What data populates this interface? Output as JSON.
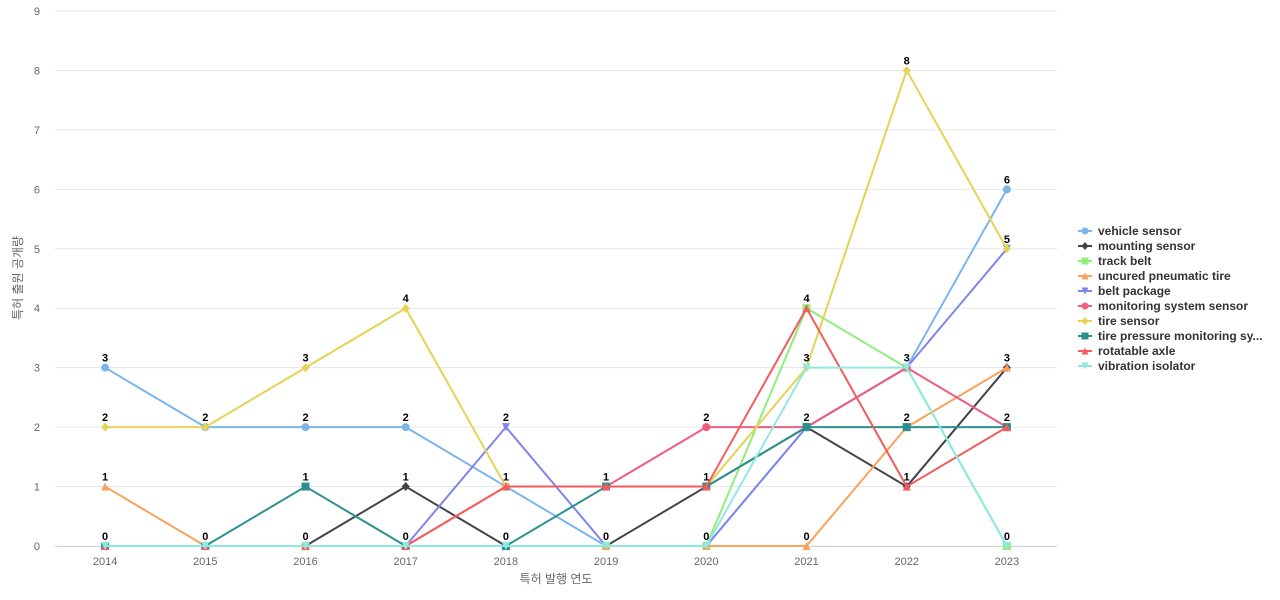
{
  "chart_data": {
    "type": "line",
    "xlabel": "특허 발행 연도",
    "ylabel": "특허 출원 공개량",
    "ylim": [
      0,
      9
    ],
    "yticks": [
      0,
      1,
      2,
      3,
      4,
      5,
      6,
      7,
      8,
      9
    ],
    "grid": true,
    "legend_position": "right",
    "categories": [
      "2014",
      "2015",
      "2016",
      "2017",
      "2018",
      "2019",
      "2020",
      "2021",
      "2022",
      "2023"
    ],
    "series": [
      {
        "name": "vehicle sensor",
        "color": "#7cb5ec",
        "marker": "circle",
        "values": [
          3,
          2,
          2,
          2,
          1,
          0,
          0,
          2,
          3,
          6
        ]
      },
      {
        "name": "mounting sensor",
        "color": "#434348",
        "marker": "diamond",
        "values": [
          0,
          0,
          0,
          1,
          0,
          0,
          1,
          2,
          1,
          3
        ]
      },
      {
        "name": "track belt",
        "color": "#90ed7d",
        "marker": "square",
        "values": [
          0,
          0,
          0,
          0,
          0,
          0,
          0,
          4,
          3,
          0
        ]
      },
      {
        "name": "uncured pneumatic tire",
        "color": "#f7a35c",
        "marker": "triangle",
        "values": [
          1,
          0,
          0,
          0,
          0,
          0,
          0,
          0,
          2,
          3
        ]
      },
      {
        "name": "belt package",
        "color": "#8085e9",
        "marker": "triangle-down",
        "values": [
          0,
          0,
          0,
          0,
          2,
          0,
          0,
          2,
          3,
          5
        ]
      },
      {
        "name": "monitoring system sensor",
        "color": "#f15c80",
        "marker": "circle",
        "values": [
          0,
          0,
          0,
          0,
          1,
          1,
          2,
          2,
          3,
          2
        ]
      },
      {
        "name": "tire sensor",
        "color": "#e4d354",
        "marker": "diamond",
        "values": [
          2,
          2,
          3,
          4,
          1,
          1,
          1,
          3,
          8,
          5
        ]
      },
      {
        "name": "tire pressure monitoring sy...",
        "color": "#2b908f",
        "marker": "square",
        "values": [
          0,
          0,
          1,
          0,
          0,
          1,
          1,
          2,
          2,
          2
        ]
      },
      {
        "name": "rotatable axle",
        "color": "#f45b5b",
        "marker": "triangle",
        "values": [
          0,
          0,
          0,
          0,
          1,
          1,
          1,
          4,
          1,
          2
        ]
      },
      {
        "name": "vibration isolator",
        "color": "#91e8e1",
        "marker": "triangle-down",
        "values": [
          0,
          0,
          0,
          0,
          0,
          0,
          0,
          3,
          3,
          0
        ]
      }
    ],
    "data_labels": [
      {
        "x": "2014",
        "value": 3
      },
      {
        "x": "2014",
        "value": 2
      },
      {
        "x": "2014",
        "value": 1
      },
      {
        "x": "2014",
        "value": 0
      },
      {
        "x": "2015",
        "value": 2
      },
      {
        "x": "2015",
        "value": 0
      },
      {
        "x": "2016",
        "value": 3
      },
      {
        "x": "2016",
        "value": 2
      },
      {
        "x": "2016",
        "value": 1
      },
      {
        "x": "2016",
        "value": 0
      },
      {
        "x": "2017",
        "value": 4
      },
      {
        "x": "2017",
        "value": 2
      },
      {
        "x": "2017",
        "value": 1
      },
      {
        "x": "2017",
        "value": 0
      },
      {
        "x": "2018",
        "value": 2
      },
      {
        "x": "2018",
        "value": 1
      },
      {
        "x": "2018",
        "value": 0
      },
      {
        "x": "2019",
        "value": 1
      },
      {
        "x": "2019",
        "value": 0
      },
      {
        "x": "2020",
        "value": 2
      },
      {
        "x": "2020",
        "value": 1
      },
      {
        "x": "2020",
        "value": 0
      },
      {
        "x": "2021",
        "value": 4
      },
      {
        "x": "2021",
        "value": 3
      },
      {
        "x": "2021",
        "value": 2
      },
      {
        "x": "2021",
        "value": 0
      },
      {
        "x": "2022",
        "value": 8
      },
      {
        "x": "2022",
        "value": 3
      },
      {
        "x": "2022",
        "value": 2
      },
      {
        "x": "2022",
        "value": 1
      },
      {
        "x": "2023",
        "value": 6
      },
      {
        "x": "2023",
        "value": 5
      },
      {
        "x": "2023",
        "value": 3
      },
      {
        "x": "2023",
        "value": 2
      },
      {
        "x": "2023",
        "value": 0
      }
    ]
  }
}
